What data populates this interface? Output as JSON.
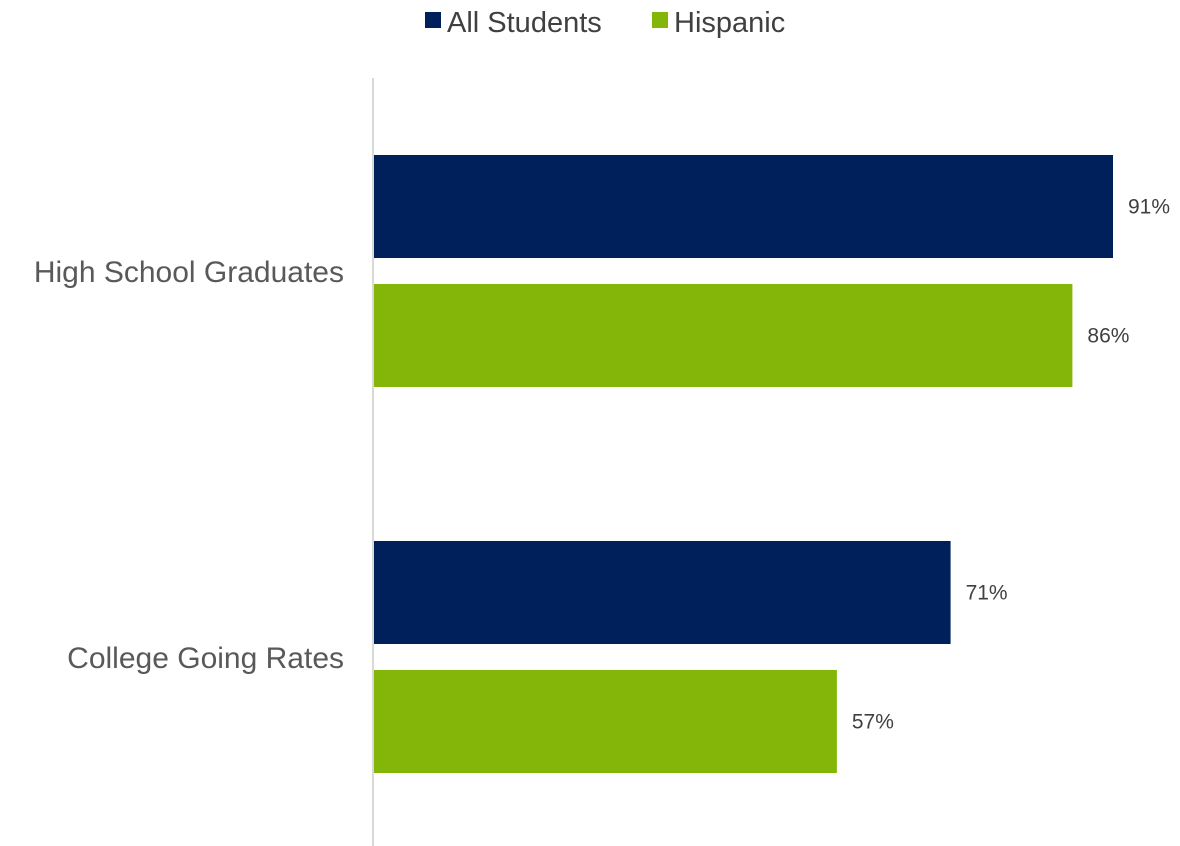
{
  "chart_data": {
    "type": "bar",
    "orientation": "horizontal",
    "title": "",
    "xlabel": "",
    "ylabel": "",
    "categories": [
      "High School Graduates",
      "College Going Rates"
    ],
    "series": [
      {
        "name": "All Students",
        "values": [
          91,
          71
        ],
        "labels": [
          "91%",
          "71%"
        ],
        "color": "#00205B"
      },
      {
        "name": "Hispanic",
        "values": [
          86,
          57
        ],
        "labels": [
          "86%",
          "57%"
        ],
        "color": "#84B60A"
      }
    ],
    "xlim": [
      0,
      100
    ],
    "value_unit": "%",
    "grid": false,
    "legend_position": "top-center",
    "axis_color": "#D9D9D9"
  }
}
